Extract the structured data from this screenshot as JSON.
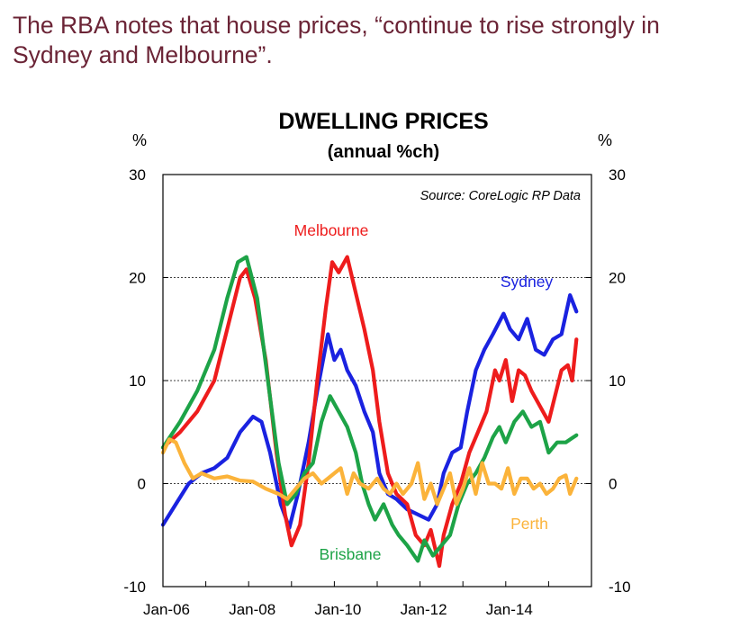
{
  "headline": "The RBA notes that house prices, “continue to rise strongly in Sydney and Melbourne”.",
  "chart_data": {
    "type": "line",
    "title": "DWELLING PRICES",
    "subtitle": "(annual %ch)",
    "source": "Source: CoreLogic RP Data",
    "left_unit": "%",
    "right_unit": "%",
    "ylim": [
      -10,
      30
    ],
    "y_ticks": [
      -10,
      0,
      10,
      20,
      30
    ],
    "y_tick_labels": [
      "-10",
      "0",
      "10",
      "20",
      "30"
    ],
    "x_tick_labels": [
      "Jan-06",
      "Jan-08",
      "Jan-10",
      "Jan-12",
      "Jan-14"
    ],
    "x_tick_years": [
      2006,
      2008,
      2010,
      2012,
      2014
    ],
    "xlim": [
      2006,
      2016
    ],
    "grid": "dotted horizontal at 0, 10, 20",
    "series": [
      {
        "name": "Sydney",
        "color": "#1a22e0",
        "values": [
          [
            2006.0,
            -4
          ],
          [
            2006.3,
            -2
          ],
          [
            2006.6,
            0
          ],
          [
            2006.9,
            1
          ],
          [
            2007.2,
            1.5
          ],
          [
            2007.5,
            2.5
          ],
          [
            2007.8,
            5
          ],
          [
            2008.1,
            6.5
          ],
          [
            2008.3,
            6
          ],
          [
            2008.5,
            3
          ],
          [
            2008.75,
            -2
          ],
          [
            2008.95,
            -4.3
          ],
          [
            2009.15,
            -1
          ],
          [
            2009.4,
            4
          ],
          [
            2009.6,
            9
          ],
          [
            2009.85,
            14.5
          ],
          [
            2010.0,
            12
          ],
          [
            2010.15,
            13
          ],
          [
            2010.3,
            11
          ],
          [
            2010.5,
            9.5
          ],
          [
            2010.7,
            7
          ],
          [
            2010.9,
            5
          ],
          [
            2011.05,
            1
          ],
          [
            2011.25,
            -1
          ],
          [
            2011.45,
            -1.5
          ],
          [
            2011.7,
            -2.5
          ],
          [
            2011.95,
            -3
          ],
          [
            2012.2,
            -3.5
          ],
          [
            2012.4,
            -2
          ],
          [
            2012.55,
            1
          ],
          [
            2012.75,
            3
          ],
          [
            2012.95,
            3.5
          ],
          [
            2013.1,
            7
          ],
          [
            2013.3,
            11
          ],
          [
            2013.5,
            13
          ],
          [
            2013.7,
            14.5
          ],
          [
            2013.95,
            16.5
          ],
          [
            2014.1,
            15
          ],
          [
            2014.3,
            14
          ],
          [
            2014.5,
            16
          ],
          [
            2014.7,
            13
          ],
          [
            2014.9,
            12.5
          ],
          [
            2015.1,
            14
          ],
          [
            2015.3,
            14.5
          ],
          [
            2015.5,
            18.3
          ],
          [
            2015.65,
            16.7
          ]
        ]
      },
      {
        "name": "Melbourne",
        "color": "#ee1c1c",
        "values": [
          [
            2006.0,
            3.5
          ],
          [
            2006.4,
            5
          ],
          [
            2006.8,
            7
          ],
          [
            2007.2,
            10
          ],
          [
            2007.5,
            15
          ],
          [
            2007.8,
            20
          ],
          [
            2007.95,
            20.8
          ],
          [
            2008.15,
            18
          ],
          [
            2008.4,
            12
          ],
          [
            2008.65,
            3
          ],
          [
            2008.85,
            -3
          ],
          [
            2009.0,
            -6
          ],
          [
            2009.2,
            -4
          ],
          [
            2009.4,
            2
          ],
          [
            2009.6,
            10
          ],
          [
            2009.8,
            17
          ],
          [
            2009.95,
            21.5
          ],
          [
            2010.1,
            20.5
          ],
          [
            2010.3,
            22
          ],
          [
            2010.5,
            18.5
          ],
          [
            2010.7,
            15
          ],
          [
            2010.9,
            11
          ],
          [
            2011.05,
            6
          ],
          [
            2011.25,
            1
          ],
          [
            2011.45,
            -1
          ],
          [
            2011.7,
            -2
          ],
          [
            2011.9,
            -5
          ],
          [
            2012.1,
            -6
          ],
          [
            2012.25,
            -4.5
          ],
          [
            2012.45,
            -8
          ],
          [
            2012.55,
            -5
          ],
          [
            2012.75,
            -2
          ],
          [
            2012.95,
            0
          ],
          [
            2013.15,
            3
          ],
          [
            2013.35,
            5
          ],
          [
            2013.55,
            7
          ],
          [
            2013.75,
            11
          ],
          [
            2013.85,
            10
          ],
          [
            2014.0,
            12
          ],
          [
            2014.15,
            8
          ],
          [
            2014.3,
            11
          ],
          [
            2014.45,
            10.5
          ],
          [
            2014.6,
            9
          ],
          [
            2014.8,
            7.5
          ],
          [
            2015.0,
            6
          ],
          [
            2015.15,
            8.5
          ],
          [
            2015.3,
            11
          ],
          [
            2015.45,
            11.5
          ],
          [
            2015.55,
            10
          ],
          [
            2015.65,
            14
          ]
        ]
      },
      {
        "name": "Brisbane",
        "color": "#1da347",
        "values": [
          [
            2006.0,
            3.5
          ],
          [
            2006.4,
            6
          ],
          [
            2006.8,
            9
          ],
          [
            2007.2,
            13
          ],
          [
            2007.5,
            18
          ],
          [
            2007.75,
            21.5
          ],
          [
            2007.95,
            22
          ],
          [
            2008.2,
            18
          ],
          [
            2008.45,
            10
          ],
          [
            2008.7,
            2
          ],
          [
            2008.9,
            -2
          ],
          [
            2009.1,
            -1
          ],
          [
            2009.3,
            1
          ],
          [
            2009.5,
            2
          ],
          [
            2009.7,
            6
          ],
          [
            2009.9,
            8.5
          ],
          [
            2010.1,
            7
          ],
          [
            2010.3,
            5.5
          ],
          [
            2010.5,
            3
          ],
          [
            2010.65,
            0
          ],
          [
            2010.8,
            -2
          ],
          [
            2010.95,
            -3.5
          ],
          [
            2011.15,
            -2
          ],
          [
            2011.35,
            -4
          ],
          [
            2011.5,
            -5
          ],
          [
            2011.7,
            -6
          ],
          [
            2011.95,
            -7.5
          ],
          [
            2012.1,
            -5.5
          ],
          [
            2012.3,
            -7
          ],
          [
            2012.5,
            -6
          ],
          [
            2012.7,
            -5
          ],
          [
            2012.9,
            -2
          ],
          [
            2013.1,
            0
          ],
          [
            2013.3,
            1
          ],
          [
            2013.5,
            2.5
          ],
          [
            2013.7,
            4.5
          ],
          [
            2013.85,
            5.5
          ],
          [
            2014.0,
            4
          ],
          [
            2014.2,
            6
          ],
          [
            2014.4,
            7
          ],
          [
            2014.6,
            5.5
          ],
          [
            2014.8,
            6
          ],
          [
            2015.0,
            3
          ],
          [
            2015.2,
            4
          ],
          [
            2015.4,
            4
          ],
          [
            2015.65,
            4.7
          ]
        ]
      },
      {
        "name": "Perth",
        "color": "#fbb33a",
        "values": [
          [
            2006.0,
            3
          ],
          [
            2006.15,
            4.3
          ],
          [
            2006.3,
            4
          ],
          [
            2006.5,
            2
          ],
          [
            2006.7,
            0.5
          ],
          [
            2006.9,
            1
          ],
          [
            2007.2,
            0.5
          ],
          [
            2007.5,
            0.7
          ],
          [
            2007.8,
            0.3
          ],
          [
            2008.1,
            0.2
          ],
          [
            2008.4,
            -0.5
          ],
          [
            2008.7,
            -1
          ],
          [
            2008.9,
            -1.5
          ],
          [
            2009.1,
            -0.5
          ],
          [
            2009.3,
            0.5
          ],
          [
            2009.5,
            1
          ],
          [
            2009.7,
            0
          ],
          [
            2009.85,
            0.5
          ],
          [
            2010.0,
            1
          ],
          [
            2010.15,
            1.5
          ],
          [
            2010.3,
            -1
          ],
          [
            2010.45,
            1
          ],
          [
            2010.6,
            0
          ],
          [
            2010.8,
            -0.5
          ],
          [
            2011.0,
            0.5
          ],
          [
            2011.15,
            -0.5
          ],
          [
            2011.3,
            -1
          ],
          [
            2011.45,
            0
          ],
          [
            2011.6,
            -1
          ],
          [
            2011.8,
            0
          ],
          [
            2011.95,
            2
          ],
          [
            2012.1,
            -1.5
          ],
          [
            2012.25,
            0
          ],
          [
            2012.4,
            -2
          ],
          [
            2012.55,
            -0.5
          ],
          [
            2012.7,
            1
          ],
          [
            2012.85,
            -2
          ],
          [
            2013.0,
            -0.5
          ],
          [
            2013.15,
            1.5
          ],
          [
            2013.3,
            -1
          ],
          [
            2013.45,
            2
          ],
          [
            2013.6,
            0
          ],
          [
            2013.75,
            0
          ],
          [
            2013.9,
            -0.5
          ],
          [
            2014.05,
            1.5
          ],
          [
            2014.2,
            -1
          ],
          [
            2014.35,
            0.5
          ],
          [
            2014.5,
            0.5
          ],
          [
            2014.65,
            -0.5
          ],
          [
            2014.8,
            0
          ],
          [
            2014.95,
            -1
          ],
          [
            2015.1,
            -0.5
          ],
          [
            2015.25,
            0.5
          ],
          [
            2015.4,
            0.8
          ],
          [
            2015.5,
            -1
          ],
          [
            2015.65,
            0.5
          ]
        ]
      }
    ],
    "labels": [
      "Melbourne",
      "Sydney",
      "Brisbane",
      "Perth"
    ]
  }
}
